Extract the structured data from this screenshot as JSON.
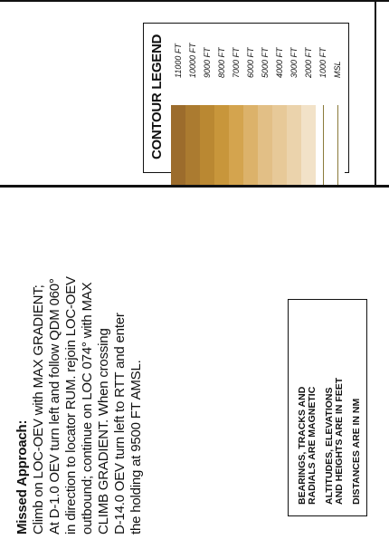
{
  "legend": {
    "title": "CONTOUR LEGEND",
    "levels": [
      {
        "label": "11000 FT",
        "color": "#9c6c2c"
      },
      {
        "label": "10000 FT",
        "color": "#ab7b30"
      },
      {
        "label": "9000 FT",
        "color": "#ba8832"
      },
      {
        "label": "8000 FT",
        "color": "#c8963b"
      },
      {
        "label": "7000 FT",
        "color": "#d4a44e"
      },
      {
        "label": "6000 FT",
        "color": "#dcb26a"
      },
      {
        "label": "5000 FT",
        "color": "#e2bf86"
      },
      {
        "label": "4000 FT",
        "color": "#e7c998"
      },
      {
        "label": "3000 FT",
        "color": "#ebd3ac"
      },
      {
        "label": "2000 FT",
        "color": "#f2e2c8"
      },
      {
        "label": "1000 FT",
        "color": "#ffffff"
      },
      {
        "label": "MSL",
        "color": "#ffffff"
      }
    ]
  },
  "missed_approach": {
    "title": "Missed Approach:",
    "lines": [
      "Climb on LOC-OEV with MAX GRADIENT;",
      "At D-1.0 OEV turn left and follow QDM 060°",
      "in direction to locator RUM. rejoin LOC-OEV",
      "outbound; continue on LOC 074° with MAX",
      "CLIMB GRADIENT. When crossing",
      "D-14.0 OEV turn left to RTT and enter",
      "the holding at 9500 FT AMSL."
    ]
  },
  "notes": [
    [
      "BEARINGS, TRACKS AND",
      "RADIALS ARE MAGNETIC"
    ],
    [
      "ALTITUDES, ELEVATIONS",
      "AND HEIGHTS ARE IN FEET"
    ],
    [
      "DISTANCES ARE IN NM"
    ]
  ]
}
